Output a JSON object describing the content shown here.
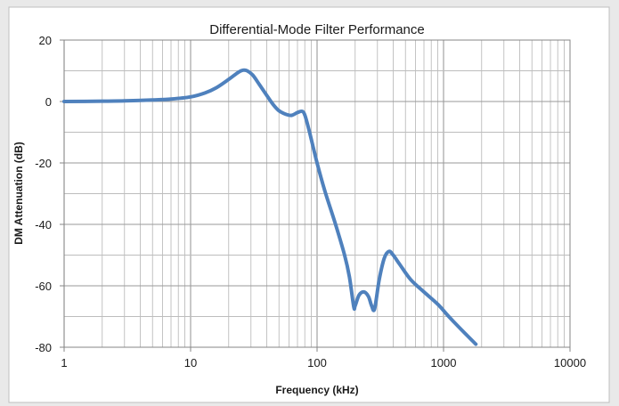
{
  "chart_data": {
    "type": "line",
    "title": "Differential-Mode Filter Performance",
    "xlabel": "Frequency (kHz)",
    "ylabel": "DM Attenuation (dB)",
    "x_scale": "log",
    "xlim": [
      1,
      10000
    ],
    "ylim": [
      -80,
      20
    ],
    "x_ticks": [
      "1",
      "10",
      "100",
      "1000",
      "10000"
    ],
    "y_ticks": [
      "20",
      "0",
      "-20",
      "-40",
      "-60",
      "-80"
    ],
    "grid": true,
    "legend": "none",
    "line_color": "#4f81bd",
    "series": [
      {
        "points": [
          [
            1,
            0
          ],
          [
            2,
            0.1
          ],
          [
            3,
            0.2
          ],
          [
            5,
            0.5
          ],
          [
            7,
            0.8
          ],
          [
            10,
            1.5
          ],
          [
            13,
            2.8
          ],
          [
            16,
            4.5
          ],
          [
            20,
            7.2
          ],
          [
            24,
            9.6
          ],
          [
            26,
            10.2
          ],
          [
            28,
            10
          ],
          [
            31,
            8.6
          ],
          [
            35,
            5.5
          ],
          [
            40,
            2
          ],
          [
            45,
            -1
          ],
          [
            50,
            -3
          ],
          [
            57,
            -4.2
          ],
          [
            63,
            -4.5
          ],
          [
            70,
            -3.6
          ],
          [
            76,
            -3.2
          ],
          [
            80,
            -4.4
          ],
          [
            86,
            -9
          ],
          [
            100,
            -20
          ],
          [
            115,
            -29
          ],
          [
            140,
            -40
          ],
          [
            165,
            -50
          ],
          [
            180,
            -57
          ],
          [
            195,
            -66.8
          ],
          [
            200,
            -66.5
          ],
          [
            215,
            -63
          ],
          [
            235,
            -62
          ],
          [
            255,
            -63.5
          ],
          [
            270,
            -66.5
          ],
          [
            285,
            -67.5
          ],
          [
            310,
            -58
          ],
          [
            340,
            -51
          ],
          [
            370,
            -48.8
          ],
          [
            400,
            -50
          ],
          [
            450,
            -53
          ],
          [
            550,
            -58
          ],
          [
            700,
            -62
          ],
          [
            900,
            -66
          ],
          [
            1100,
            -70
          ],
          [
            1400,
            -74.5
          ],
          [
            1800,
            -79
          ]
        ]
      }
    ]
  }
}
